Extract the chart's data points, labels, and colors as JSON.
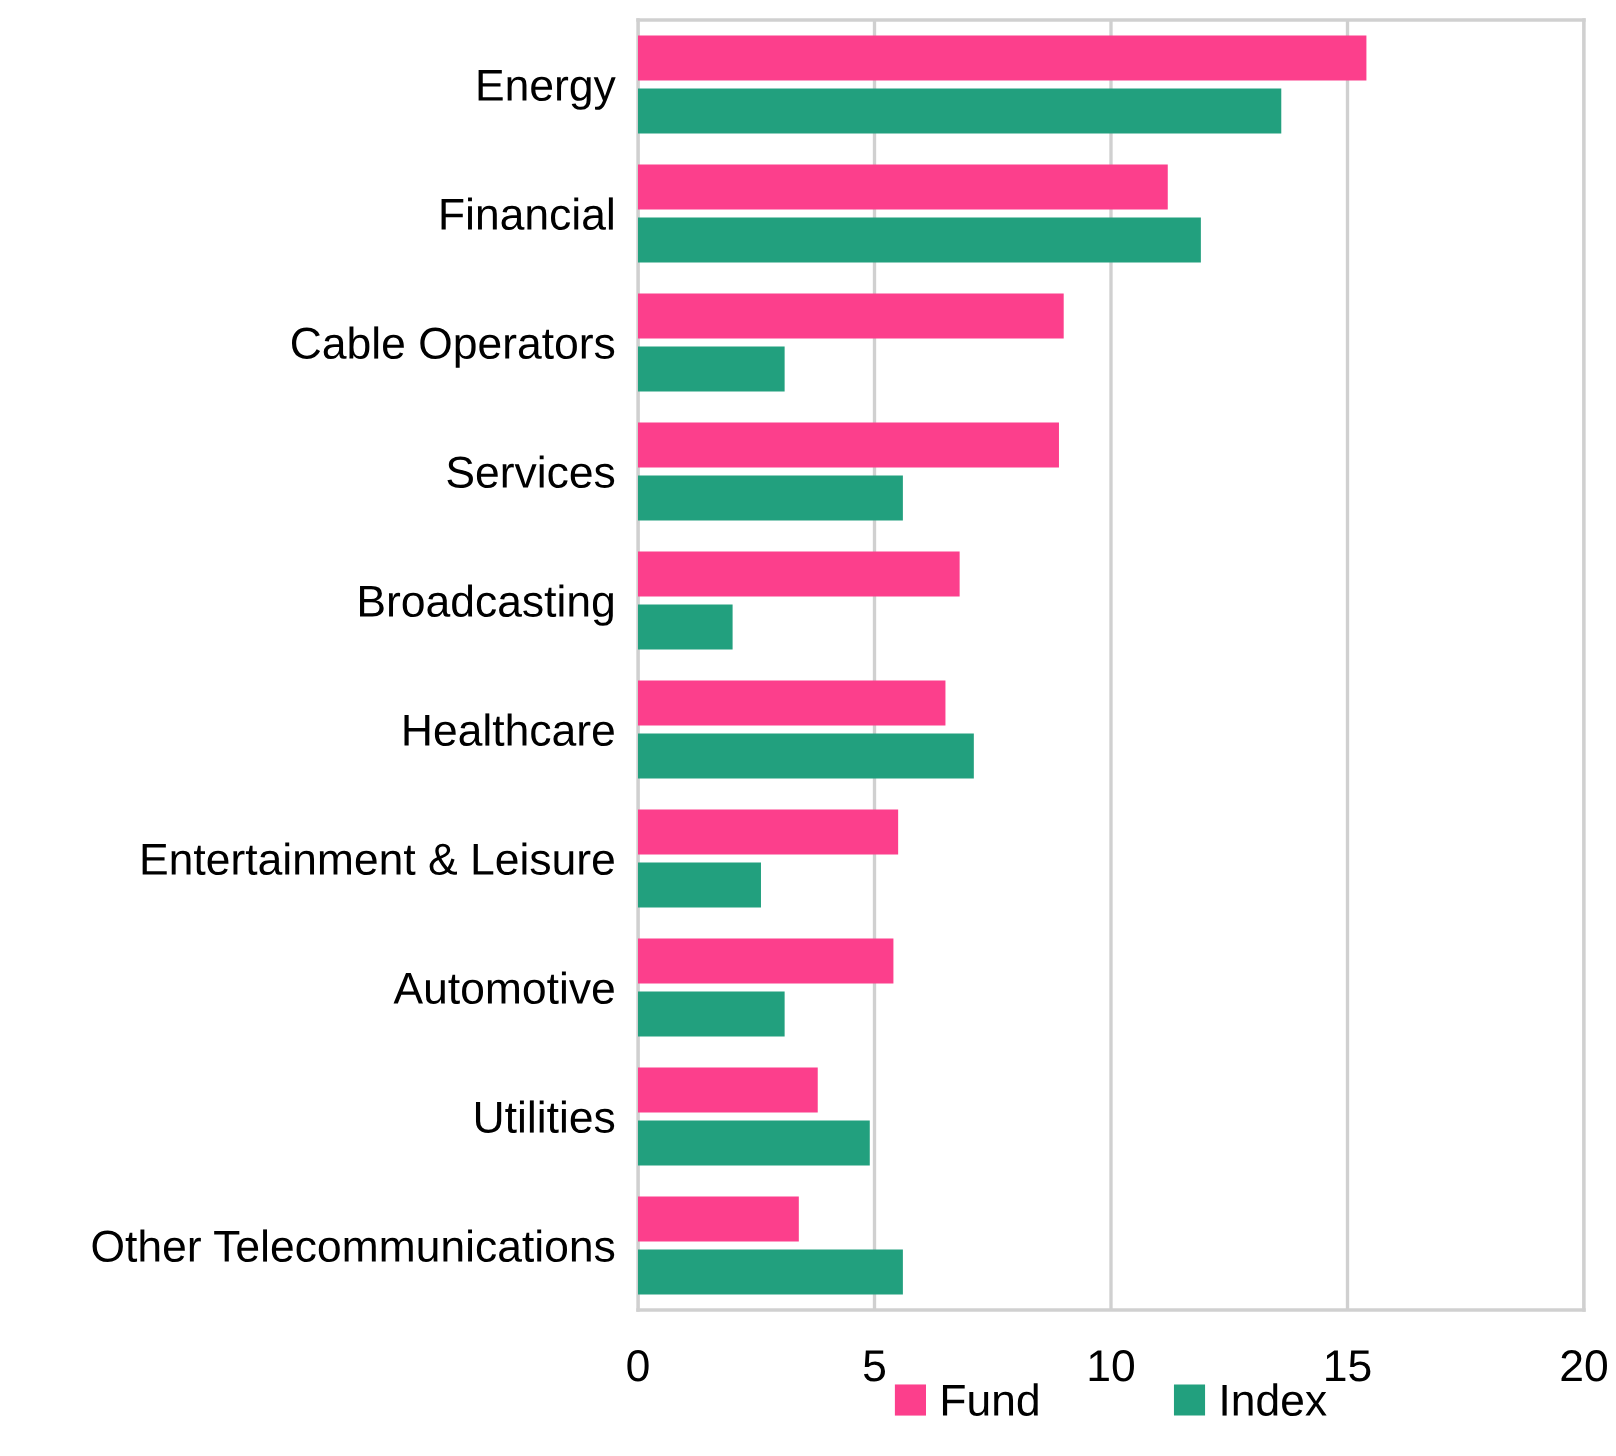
{
  "chart_data": {
    "type": "bar",
    "orientation": "horizontal",
    "categories": [
      "Energy",
      "Financial",
      "Cable Operators",
      "Services",
      "Broadcasting",
      "Healthcare",
      "Entertainment & Leisure",
      "Automotive",
      "Utilities",
      "Other Telecommunications"
    ],
    "series": [
      {
        "name": "Fund",
        "color": "#fc3f8c",
        "values": [
          15.4,
          11.2,
          9.0,
          8.9,
          6.8,
          6.5,
          5.5,
          5.4,
          3.8,
          3.4
        ]
      },
      {
        "name": "Index",
        "color": "#22a07e",
        "values": [
          13.6,
          11.9,
          3.1,
          5.6,
          2.0,
          7.1,
          2.6,
          3.1,
          4.9,
          5.6
        ]
      }
    ],
    "xlim": [
      0,
      20
    ],
    "xticks": [
      0,
      5,
      10,
      15,
      20
    ],
    "grid": "x",
    "legend": "bottom"
  }
}
